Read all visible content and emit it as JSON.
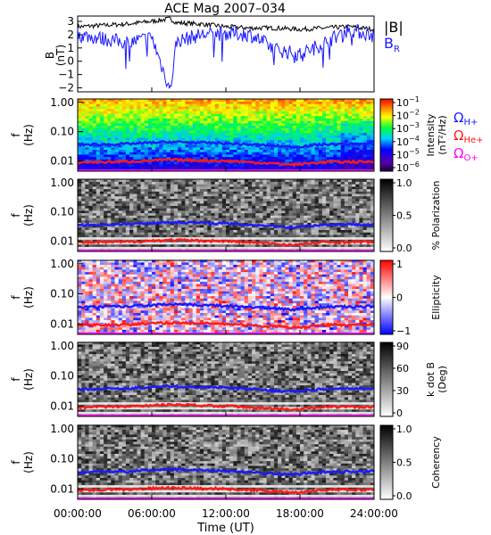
{
  "title": "ACE Mag 2007–034",
  "colors": {
    "B_total": "#000000",
    "B_R": "#1a1aff",
    "H_plus": "#1a1aff",
    "He_plus": "#ff1a1a",
    "O_plus": "#ff00ff"
  },
  "chart_data": [
    {
      "type": "line",
      "panel": "magnetic-field",
      "ylabel": [
        "B",
        "(nT)"
      ],
      "y_ticks": [
        "3",
        "2",
        "1",
        "0",
        "−1",
        "−2"
      ],
      "ylim": [
        -2.3,
        3.4
      ],
      "x": [
        "00:00",
        "02:00",
        "04:00",
        "06:00",
        "07:30",
        "08:00",
        "10:00",
        "12:00",
        "14:00",
        "16:00",
        "18:00",
        "20:00",
        "22:00",
        "24:00"
      ],
      "series": [
        {
          "name": "|B|",
          "values": [
            2.6,
            2.7,
            2.8,
            3.0,
            3.2,
            2.9,
            2.8,
            2.6,
            2.5,
            2.5,
            2.4,
            2.5,
            2.6,
            2.4
          ]
        },
        {
          "name": "B_R",
          "values": [
            2.0,
            1.7,
            1.4,
            1.8,
            -2.2,
            1.5,
            2.0,
            2.1,
            2.0,
            0.9,
            0.5,
            1.4,
            2.4,
            1.9
          ]
        }
      ],
      "legend": {
        "top": "|B|",
        "bottom_main": "B",
        "bottom_sub": "R"
      },
      "legend_placement": "right"
    },
    {
      "type": "heatmap",
      "panel": "power-spectrum",
      "ylabel": [
        "f",
        "(Hz)"
      ],
      "y_ticks": [
        "1.00",
        "0.10",
        "0.01"
      ],
      "colorbar_label": [
        "Intensity",
        "(nT²/Hz)"
      ],
      "colorbar_ticks": [
        {
          "main": "10",
          "exp": "−1"
        },
        {
          "main": "10",
          "exp": "−2"
        },
        {
          "main": "10",
          "exp": "−3"
        },
        {
          "main": "10",
          "exp": "−4"
        },
        {
          "main": "10",
          "exp": "−5"
        },
        {
          "main": "10",
          "exp": "−6"
        }
      ],
      "legend": [
        {
          "main": "Ω",
          "sub": "H+"
        },
        {
          "main": "Ω",
          "sub": "He+"
        },
        {
          "main": "Ω",
          "sub": "O+"
        }
      ]
    },
    {
      "type": "heatmap",
      "panel": "polarization",
      "ylabel": [
        "f",
        "(Hz)"
      ],
      "y_ticks": [
        "1.00",
        "0.10",
        "0.01"
      ],
      "colorbar_label": [
        "% Polarization"
      ],
      "colorbar_ticks": [
        {
          "main": "1.0"
        },
        {
          "main": "0.5"
        },
        {
          "main": "0.0"
        }
      ]
    },
    {
      "type": "heatmap",
      "panel": "ellipticity",
      "ylabel": [
        "f",
        "(Hz)"
      ],
      "y_ticks": [
        "1.00",
        "0.10",
        "0.01"
      ],
      "colorbar_label": [
        "Ellipticity"
      ],
      "colorbar_ticks": [
        {
          "main": "1"
        },
        {
          "main": "0"
        },
        {
          "main": "−1"
        }
      ]
    },
    {
      "type": "heatmap",
      "panel": "wave-normal-angle",
      "ylabel": [
        "f",
        "(Hz)"
      ],
      "y_ticks": [
        "1.00",
        "0.10",
        "0.01"
      ],
      "colorbar_label": [
        "k dot B",
        "(Deg)"
      ],
      "colorbar_ticks": [
        {
          "main": "90"
        },
        {
          "main": "60"
        },
        {
          "main": "30"
        },
        {
          "main": "0"
        }
      ]
    },
    {
      "type": "heatmap",
      "panel": "coherency",
      "ylabel": [
        "f",
        "(Hz)"
      ],
      "y_ticks": [
        "1.00",
        "0.10",
        "0.01"
      ],
      "colorbar_label": [
        "Coherency"
      ],
      "colorbar_ticks": [
        {
          "main": "1.0"
        },
        {
          "main": "0.5"
        },
        {
          "main": "0.0"
        }
      ]
    }
  ],
  "gyrofrequency": {
    "x": [
      "00:00",
      "04:00",
      "07:30",
      "12:00",
      "17:30",
      "20:00",
      "24:00"
    ],
    "H_plus_hz": [
      0.036,
      0.038,
      0.045,
      0.04,
      0.03,
      0.037,
      0.038
    ],
    "He_plus_hz": [
      0.009,
      0.0095,
      0.011,
      0.01,
      0.0075,
      0.0092,
      0.0095
    ]
  },
  "x_axis": {
    "title": "Time (UT)",
    "ticks": [
      "00:00:00",
      "06:00:00",
      "12:00:00",
      "18:00:00",
      "24:00:00"
    ],
    "range_hours": [
      0,
      24
    ]
  }
}
